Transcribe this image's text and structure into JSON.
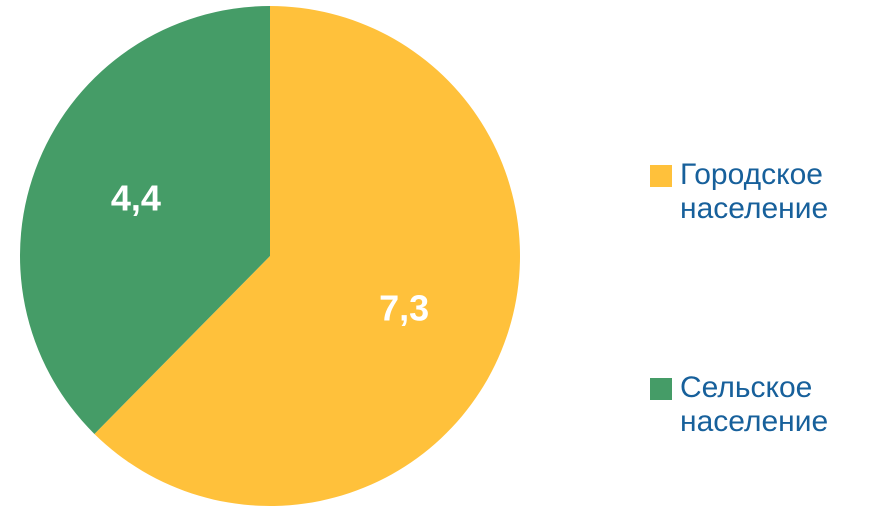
{
  "chart_data": {
    "type": "pie",
    "categories": [
      "Городское население",
      "Сельское население"
    ],
    "values": [
      7.3,
      4.4
    ],
    "value_labels": [
      "7,3",
      "4,4"
    ],
    "colors": [
      "#ffc13b",
      "#459c67"
    ]
  }
}
